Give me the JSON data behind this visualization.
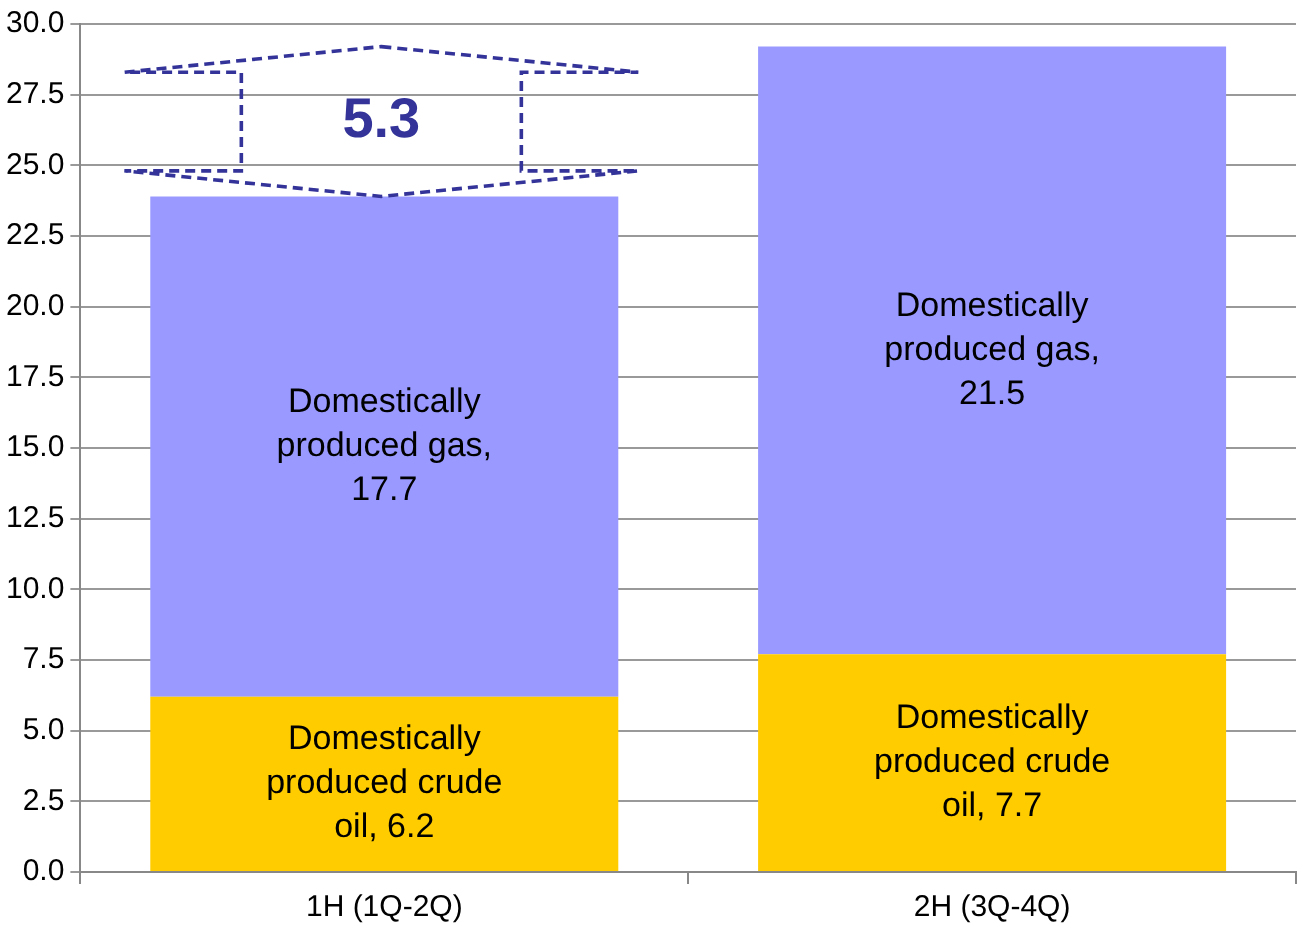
{
  "chart_data": {
    "type": "bar",
    "stacked": true,
    "categories": [
      "1H (1Q-2Q)",
      "2H (3Q-4Q)"
    ],
    "series": [
      {
        "color": "#ffcc00",
        "values": [
          6.2,
          7.7
        ],
        "value_labels": [
          "Domestically produced crude oil, 6.2",
          "Domestically produced crude oil, 7.7"
        ]
      },
      {
        "color": "#9999ff",
        "values": [
          17.7,
          21.5
        ],
        "value_labels": [
          "Domestically produced gas, 17.7",
          "Domestically produced gas, 21.5"
        ]
      }
    ],
    "ylim": [
      0,
      30
    ],
    "yticks": [
      {
        "value": 0,
        "label": "0.0"
      },
      {
        "value": 2.5,
        "label": "2.5"
      },
      {
        "value": 5,
        "label": "5.0"
      },
      {
        "value": 7.5,
        "label": "7.5"
      },
      {
        "value": 10,
        "label": "10.0"
      },
      {
        "value": 12.5,
        "label": "12.5"
      },
      {
        "value": 15,
        "label": "15.0"
      },
      {
        "value": 17.5,
        "label": "17.5"
      },
      {
        "value": 20,
        "label": "20.0"
      },
      {
        "value": 22.5,
        "label": "22.5"
      },
      {
        "value": 25,
        "label": "25.0"
      },
      {
        "value": 27.5,
        "label": "27.5"
      },
      {
        "value": 30,
        "label": "30.0"
      }
    ],
    "grid": "y",
    "legend": false,
    "annotations": [
      "5.3"
    ]
  }
}
